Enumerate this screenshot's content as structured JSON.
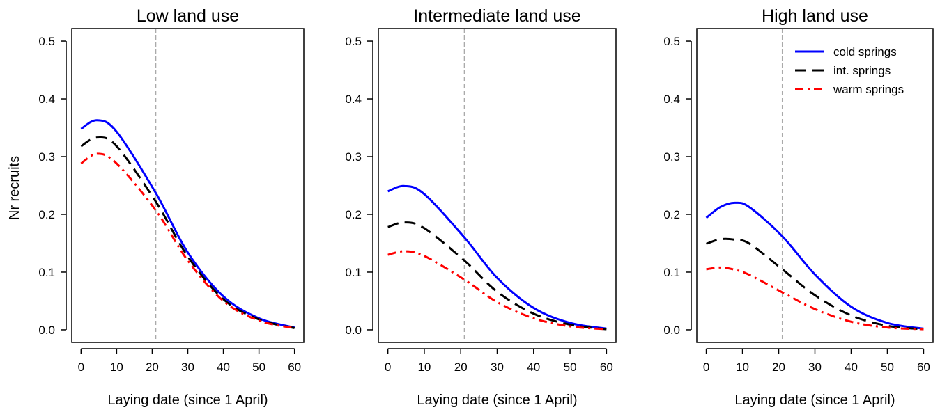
{
  "ylabel": "Nr recruits",
  "legend": [
    {
      "label": "cold springs",
      "color": "#0000ff",
      "dash": "solid"
    },
    {
      "label": "int. springs",
      "color": "#000000",
      "dash": "dashed"
    },
    {
      "label": "warm springs",
      "color": "#ff0000",
      "dash": "dotdash"
    }
  ],
  "chart_data": [
    {
      "type": "line",
      "title": "Low land use",
      "xlabel": "Laying date (since 1 April)",
      "ylabel": "Nr recruits",
      "xlim": [
        0,
        60
      ],
      "ylim": [
        0,
        0.5
      ],
      "xticks": [
        0,
        10,
        20,
        30,
        40,
        50,
        60
      ],
      "yticks": [
        "0.0",
        "0.1",
        "0.2",
        "0.3",
        "0.4",
        "0.5"
      ],
      "vline": 21,
      "x": [
        0,
        4.5,
        10,
        21,
        30,
        40,
        50,
        60
      ],
      "series": [
        {
          "name": "cold springs",
          "values": [
            0.348,
            0.363,
            0.343,
            0.237,
            0.134,
            0.058,
            0.02,
            0.004
          ]
        },
        {
          "name": "int. springs",
          "values": [
            0.318,
            0.333,
            0.318,
            0.222,
            0.127,
            0.053,
            0.018,
            0.003
          ]
        },
        {
          "name": "warm springs",
          "values": [
            0.288,
            0.305,
            0.288,
            0.207,
            0.12,
            0.05,
            0.016,
            0.003
          ]
        }
      ]
    },
    {
      "type": "line",
      "title": "Intermediate land use",
      "xlabel": "Laying date (since 1 April)",
      "ylabel": "",
      "xlim": [
        0,
        60
      ],
      "ylim": [
        0,
        0.5
      ],
      "xticks": [
        0,
        10,
        20,
        30,
        40,
        50,
        60
      ],
      "yticks": [
        "0.0",
        "0.1",
        "0.2",
        "0.3",
        "0.4",
        "0.5"
      ],
      "vline": 21,
      "x": [
        0,
        4.5,
        10,
        21,
        30,
        40,
        50,
        60
      ],
      "series": [
        {
          "name": "cold springs",
          "values": [
            0.24,
            0.249,
            0.235,
            0.16,
            0.09,
            0.038,
            0.012,
            0.002
          ]
        },
        {
          "name": "int. springs",
          "values": [
            0.178,
            0.186,
            0.176,
            0.12,
            0.066,
            0.028,
            0.009,
            0.001
          ]
        },
        {
          "name": "warm springs",
          "values": [
            0.13,
            0.136,
            0.128,
            0.087,
            0.048,
            0.02,
            0.006,
            0.001
          ]
        }
      ]
    },
    {
      "type": "line",
      "title": "High land use",
      "xlabel": "Laying date (since 1 April)",
      "ylabel": "",
      "xlim": [
        0,
        60
      ],
      "ylim": [
        0,
        0.5
      ],
      "xticks": [
        0,
        10,
        20,
        30,
        40,
        50,
        60
      ],
      "yticks": [
        "0.0",
        "0.1",
        "0.2",
        "0.3",
        "0.4",
        "0.5"
      ],
      "vline": 21,
      "legend_position": "top-right",
      "x": [
        0,
        4,
        8,
        12,
        21,
        30,
        40,
        50,
        60
      ],
      "series": [
        {
          "name": "cold springs",
          "values": [
            0.194,
            0.213,
            0.22,
            0.212,
            0.162,
            0.096,
            0.04,
            0.012,
            0.002
          ]
        },
        {
          "name": "int. springs",
          "values": [
            0.149,
            0.157,
            0.156,
            0.149,
            0.105,
            0.06,
            0.025,
            0.007,
            0.001
          ]
        },
        {
          "name": "warm springs",
          "values": [
            0.105,
            0.108,
            0.104,
            0.095,
            0.065,
            0.036,
            0.014,
            0.004,
            0.001
          ]
        }
      ]
    }
  ]
}
